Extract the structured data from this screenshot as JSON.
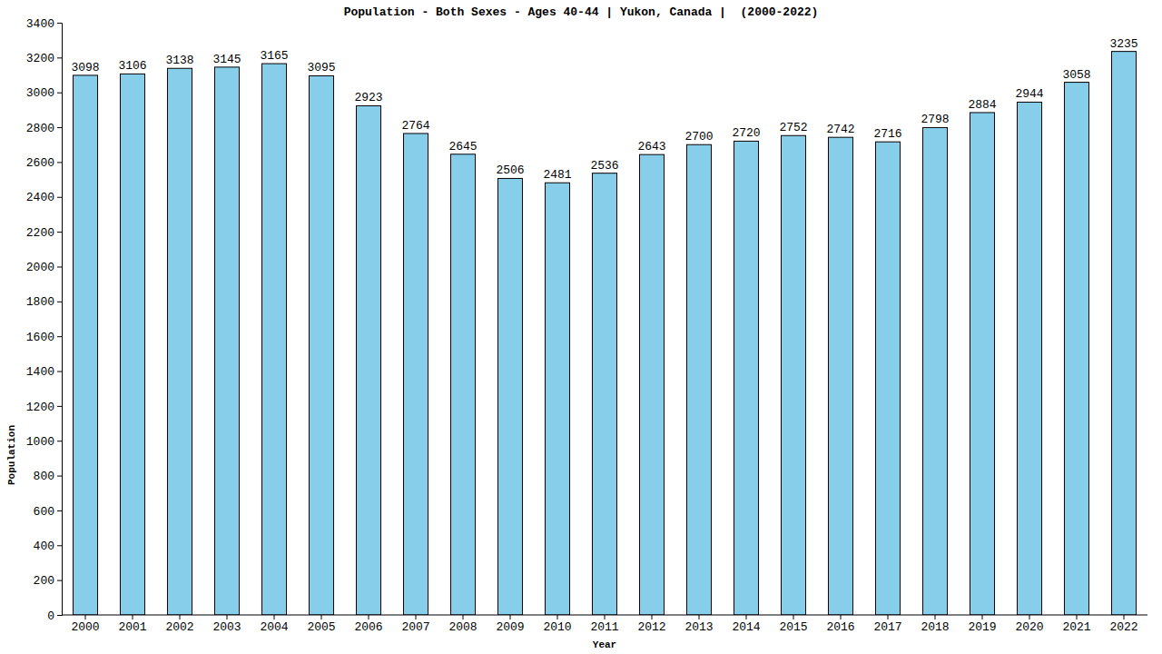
{
  "chart_data": {
    "type": "bar",
    "title": "Population - Both Sexes - Ages 40-44 | Yukon, Canada |  (2000-2022)",
    "x_label": "Year",
    "y_label": "Population",
    "categories": [
      "2000",
      "2001",
      "2002",
      "2003",
      "2004",
      "2005",
      "2006",
      "2007",
      "2008",
      "2009",
      "2010",
      "2011",
      "2012",
      "2013",
      "2014",
      "2015",
      "2016",
      "2017",
      "2018",
      "2019",
      "2020",
      "2021",
      "2022"
    ],
    "values": [
      3098,
      3106,
      3138,
      3145,
      3165,
      3095,
      2923,
      2764,
      2645,
      2506,
      2481,
      2536,
      2643,
      2700,
      2720,
      2752,
      2742,
      2716,
      2798,
      2884,
      2944,
      3058,
      3235
    ],
    "color": "#87ceeb",
    "ylim": [
      0,
      3400
    ],
    "yticks": [
      0,
      200,
      400,
      600,
      800,
      1000,
      1200,
      1400,
      1600,
      1800,
      2000,
      2200,
      2400,
      2600,
      2800,
      3000,
      3200,
      3400
    ],
    "grid": false,
    "data_labels": true
  }
}
